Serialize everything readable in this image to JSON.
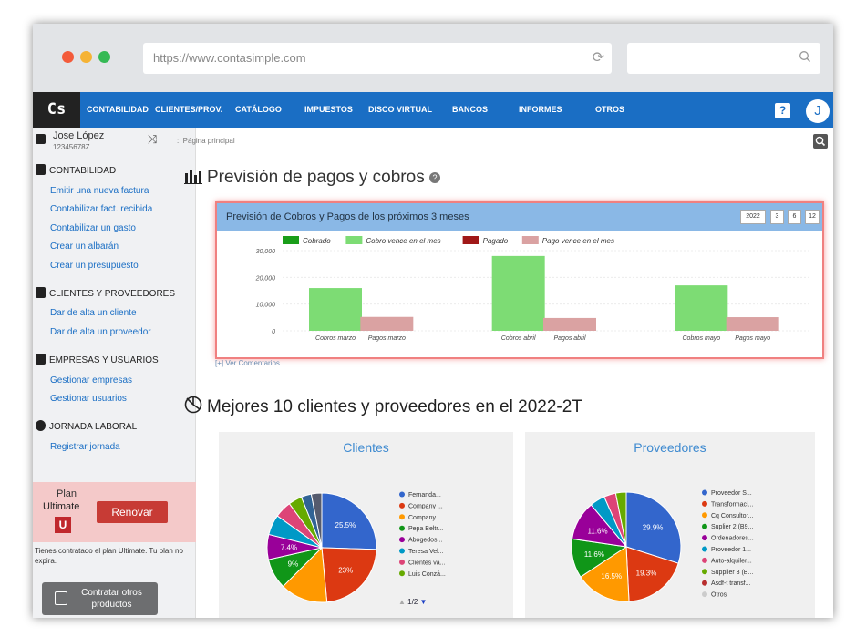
{
  "browser": {
    "url": "https://www.contasimple.com",
    "dots": [
      "#f35b3b",
      "#f5b335",
      "#35b955"
    ]
  },
  "navbar": {
    "logo": "Cs",
    "items": [
      "CONTABILIDAD",
      "CLIENTES/PROV.",
      "CATÁLOGO",
      "IMPUESTOS",
      "DISCO VIRTUAL",
      "BANCOS",
      "INFORMES",
      "OTROS"
    ],
    "help": "?",
    "avatar": "J",
    "color": "#1a6ec4"
  },
  "user": {
    "name": "Jose López",
    "id": "12345678Z"
  },
  "breadcrumb": ":: Página principal",
  "sidebar": {
    "sections": [
      {
        "title": "CONTABILIDAD",
        "links": [
          "Emitir una nueva factura",
          "Contabilizar fact. recibida",
          "Contabilizar un gasto",
          "Crear un albarán",
          "Crear un presupuesto"
        ]
      },
      {
        "title": "CLIENTES Y PROVEEDORES",
        "links": [
          "Dar de alta un cliente",
          "Dar de alta un proveedor"
        ]
      },
      {
        "title": "EMPRESAS Y USUARIOS",
        "links": [
          "Gestionar empresas",
          "Gestionar usuarios"
        ]
      },
      {
        "title": "JORNADA LABORAL",
        "links": [
          "Registrar jornada"
        ]
      }
    ],
    "plan": {
      "label": "Plan",
      "name": "Ultimate",
      "badge": "U",
      "renew": "Renovar",
      "note": "Tienes contratado el plan Ultimate. Tu plan no expira."
    },
    "contract": "Contratar otros productos"
  },
  "main": {
    "title": "Previsión de pagos y cobros",
    "chart_title": "Previsión de Cobros y Pagos de los próximos 3 meses",
    "periods": [
      "2022",
      "3",
      "6",
      "12"
    ],
    "comments": "[+] Ver Comentarios",
    "section2": "Mejores 10 clientes y proveedores en el 2022-2T"
  },
  "chart_data": [
    {
      "type": "bar",
      "categories": [
        "Cobros marzo",
        "Pagos marzo",
        "Cobros abril",
        "Pagos abril",
        "Cobros mayo",
        "Pagos mayo"
      ],
      "series": [
        {
          "name": "Cobrado",
          "color": "#1a9e1a",
          "values": [
            0,
            0,
            0,
            0,
            0,
            0
          ]
        },
        {
          "name": "Cobro vence en el mes",
          "color": "#7ddc74",
          "values": [
            16000,
            0,
            28000,
            0,
            17000,
            0
          ]
        },
        {
          "name": "Pagado",
          "color": "#a01818",
          "values": [
            0,
            0,
            0,
            0,
            0,
            0
          ]
        },
        {
          "name": "Pago vence en el mes",
          "color": "#daa2a2",
          "values": [
            0,
            5200,
            0,
            4800,
            0,
            5100
          ]
        }
      ],
      "ylim": [
        0,
        30000
      ],
      "yticks": [
        "0",
        "10,000",
        "20,000",
        "30,000"
      ],
      "legend": "top"
    },
    {
      "type": "pie",
      "title": "Clientes",
      "labels": [
        "Fernanda...",
        "Company ...",
        "Company ...",
        "Pepa Beltr...",
        "Abogedos...",
        "Teresa Vel...",
        "Clientes va...",
        "Luis Conzá...",
        "",
        ""
      ],
      "values": [
        25.5,
        23,
        14,
        9,
        7.4,
        6,
        5,
        4,
        3,
        3.1
      ],
      "data_labels": [
        "25.5%",
        "23%",
        "",
        "9%",
        "7.4%",
        "",
        "",
        "",
        "",
        ""
      ],
      "colors": [
        "#3366cc",
        "#dc3912",
        "#ff9900",
        "#109618",
        "#990099",
        "#0099c6",
        "#dd4477",
        "#66aa00",
        "#316395",
        "#555b6e"
      ],
      "pager": "1/2"
    },
    {
      "type": "pie",
      "title": "Proveedores",
      "labels": [
        "Proveedor S...",
        "Transformaci...",
        "Cq Consultor...",
        "Suplier 2 (B9...",
        "Ordenadores...",
        "Proveedor 1...",
        "Auto-alquiler...",
        "Supplier 3 (B...",
        "Asdf-t transf...",
        "Otros"
      ],
      "values": [
        29.9,
        19.3,
        16.5,
        11.6,
        11.6,
        4.5,
        3.5,
        3.1,
        0,
        0
      ],
      "data_labels": [
        "29.9%",
        "19.3%",
        "16.5%",
        "11.6%",
        "11.6%",
        "",
        "",
        "",
        "",
        ""
      ],
      "colors": [
        "#3366cc",
        "#dc3912",
        "#ff9900",
        "#109618",
        "#990099",
        "#0099c6",
        "#dd4477",
        "#66aa00",
        "#b82e2e",
        "#cccccc"
      ]
    }
  ]
}
